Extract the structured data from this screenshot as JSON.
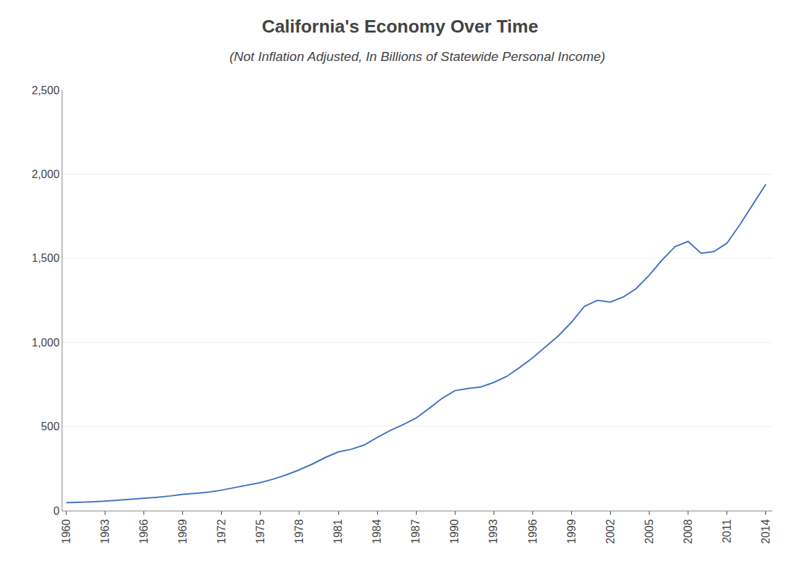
{
  "chart_data": {
    "type": "line",
    "title": "California's Economy Over Time",
    "subtitle": "(Not Inflation Adjusted, In Billions of Statewide Personal Income)",
    "x": [
      1960,
      1961,
      1962,
      1963,
      1964,
      1965,
      1966,
      1967,
      1968,
      1969,
      1970,
      1971,
      1972,
      1973,
      1974,
      1975,
      1976,
      1977,
      1978,
      1979,
      1980,
      1981,
      1982,
      1983,
      1984,
      1985,
      1986,
      1987,
      1988,
      1989,
      1990,
      1991,
      1992,
      1993,
      1994,
      1995,
      1996,
      1997,
      1998,
      1999,
      2000,
      2001,
      2002,
      2003,
      2004,
      2005,
      2006,
      2007,
      2008,
      2009,
      2010,
      2011,
      2012,
      2013,
      2014
    ],
    "values": [
      47,
      49,
      53,
      57,
      62,
      67,
      74,
      79,
      87,
      97,
      103,
      110,
      122,
      138,
      154,
      167,
      188,
      213,
      243,
      277,
      316,
      349,
      365,
      390,
      435,
      476,
      511,
      550,
      607,
      667,
      713,
      726,
      735,
      762,
      798,
      851,
      908,
      976,
      1040,
      1120,
      1215,
      1250,
      1240,
      1270,
      1320,
      1400,
      1490,
      1570,
      1600,
      1530,
      1540,
      1590,
      1700,
      1820,
      1940
    ],
    "color": "#4472C4",
    "xlim": [
      1959.7,
      2014.5
    ],
    "xticks": [
      1960,
      1963,
      1966,
      1969,
      1972,
      1975,
      1978,
      1981,
      1984,
      1987,
      1990,
      1993,
      1996,
      1999,
      2002,
      2005,
      2008,
      2011,
      2014
    ],
    "ylim": [
      0,
      2500
    ],
    "yticks": [
      0,
      500,
      {
        "value": 1000,
        "label": "1,000"
      },
      {
        "value": 1500,
        "label": "1,500"
      },
      {
        "value": 2000,
        "label": "2,000"
      },
      {
        "value": 2500,
        "label": "2,500"
      }
    ],
    "grid": "y"
  }
}
